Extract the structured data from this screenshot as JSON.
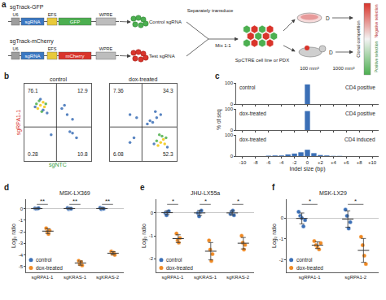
{
  "diagram": {
    "panel": "a",
    "constructs": [
      {
        "name": "sgTrack-GFP",
        "parts": [
          "U6",
          "sgRNA",
          "EFS",
          "GFP",
          "WPRE"
        ]
      },
      {
        "name": "sgTrack-mCherry",
        "parts": [
          "U6",
          "sgRNA",
          "EFS",
          "mCherry",
          "WPRE"
        ]
      }
    ],
    "groups": [
      "Control sgRNA",
      "Test sgRNA"
    ],
    "steps": [
      "Separately transduce",
      "Mix 1:1"
    ],
    "model": "SpCTRE cell line or PDX",
    "timepoints": [
      "D",
      "D"
    ],
    "sizes": [
      "100 mm³",
      "1000 mm³"
    ],
    "selection": [
      "Negative selection",
      "Clonal competition",
      "Positive selection"
    ]
  },
  "chart_data": [
    {
      "panel": "b",
      "type": "scatter",
      "title": "control",
      "x_label": "sgNTC",
      "y_label": "sgRPA1-1",
      "xlim": [
        0,
        5
      ],
      "ylim": [
        0,
        5
      ],
      "grid": false,
      "tick_labels": false,
      "gates": {
        "x": 2.4,
        "y": 2.2
      },
      "quadrants": {
        "upper_left": 76.1,
        "upper_right": 12.9,
        "lower_left": 0.28,
        "lower_right": 10.8
      },
      "x": [
        1.2,
        1.4,
        1.0,
        1.5,
        1.3,
        1.1,
        1.6,
        0.9,
        1.4,
        1.2,
        1.7,
        0.8,
        2.8,
        3.2,
        3.6,
        3.0,
        3.6,
        3.9,
        3.4,
        2.0
      ],
      "values": [
        3.6,
        3.8,
        3.4,
        3.5,
        3.2,
        3.9,
        3.7,
        3.7,
        3.3,
        4.0,
        3.1,
        3.5,
        3.4,
        3.0,
        2.7,
        3.6,
        1.8,
        1.5,
        1.9,
        1.7
      ],
      "colors": [
        "#f2c80f",
        "#f2c80f",
        "#f2c80f",
        "#f2c80f",
        "#4daf4a",
        "#4daf4a",
        "#4daf4a",
        "#4daf4a",
        "#3b6fb6",
        "#3b6fb6",
        "#3b6fb6",
        "#3b6fb6",
        "#3b6fb6",
        "#3b6fb6",
        "#3b6fb6",
        "#3b6fb6",
        "#3b6fb6",
        "#3b6fb6",
        "#3b6fb6",
        "#3b6fb6"
      ]
    },
    {
      "panel": "b",
      "type": "scatter",
      "title": "dox-treated",
      "xlim": [
        0,
        5
      ],
      "ylim": [
        0,
        5
      ],
      "grid": false,
      "tick_labels": false,
      "gates": {
        "x": 2.4,
        "y": 2.2
      },
      "quadrants": {
        "upper_left": 7.36,
        "upper_right": 34.3,
        "lower_left": 6.08,
        "lower_right": 52.3
      },
      "x": [
        3.8,
        4.0,
        3.6,
        4.1,
        3.9,
        3.5,
        4.2,
        3.7,
        3.3,
        4.3,
        3.2,
        3.5,
        3.0,
        3.8,
        2.8,
        3.4,
        1.5,
        2.0,
        1.8,
        1.5
      ],
      "values": [
        1.2,
        1.4,
        1.0,
        1.1,
        1.6,
        1.3,
        1.5,
        1.7,
        1.1,
        0.9,
        2.5,
        2.8,
        2.6,
        3.0,
        2.4,
        3.2,
        3.0,
        2.8,
        1.5,
        1.2
      ],
      "colors": [
        "#f2c80f",
        "#f2c80f",
        "#f2c80f",
        "#f2c80f",
        "#4daf4a",
        "#4daf4a",
        "#4daf4a",
        "#4daf4a",
        "#3b6fb6",
        "#3b6fb6",
        "#3b6fb6",
        "#3b6fb6",
        "#3b6fb6",
        "#3b6fb6",
        "#3b6fb6",
        "#3b6fb6",
        "#3b6fb6",
        "#3b6fb6",
        "#3b6fb6",
        "#3b6fb6"
      ]
    },
    {
      "panel": "c",
      "type": "bar",
      "title": "control",
      "annotation": "CD4 positive",
      "x": [
        0
      ],
      "values": [
        93
      ],
      "color": "#3b6fb6",
      "xlim": [
        -11,
        11
      ],
      "xticks": [
        -10,
        -8,
        -6,
        -4,
        -2,
        0,
        {
          "value": 2,
          "label": "+2"
        },
        {
          "value": 4,
          "label": "+4"
        },
        {
          "value": 6,
          "label": "+6"
        },
        {
          "value": 8,
          "label": "+8"
        },
        {
          "value": 10,
          "label": "+10"
        }
      ],
      "ylim": [
        0,
        100
      ],
      "yticks": [
        0,
        100
      ],
      "grid": false,
      "tick_labels": "y"
    },
    {
      "panel": "c",
      "type": "bar",
      "title": "dox-treated",
      "annotation": "CD4 positive",
      "y_label": "% of seq",
      "x": [
        0
      ],
      "values": [
        90
      ],
      "color": "#3b6fb6",
      "xlim": [
        -11,
        11
      ],
      "xticks": [
        -10,
        -8,
        -6,
        -4,
        -2,
        0,
        {
          "value": 2,
          "label": "+2"
        },
        {
          "value": 4,
          "label": "+4"
        },
        {
          "value": 6,
          "label": "+6"
        },
        {
          "value": 8,
          "label": "+8"
        },
        {
          "value": 10,
          "label": "+10"
        }
      ],
      "ylim": [
        0,
        100
      ],
      "yticks": [
        0,
        100
      ],
      "grid": false,
      "tick_labels": "y"
    },
    {
      "panel": "c",
      "type": "bar",
      "title": "dox-treated",
      "annotation": "CD4 induced",
      "x_label": "Indel size (bp)",
      "x": [
        -6,
        -5,
        -4,
        -3,
        -2,
        -1,
        0,
        1,
        2,
        3,
        4,
        5
      ],
      "values": [
        2,
        3,
        3,
        8,
        12,
        18,
        30,
        14,
        5,
        3,
        1,
        1
      ],
      "color": "#3b6fb6",
      "xlim": [
        -11,
        11
      ],
      "xticks": [
        -10,
        -8,
        -6,
        -4,
        -2,
        0,
        {
          "value": 2,
          "label": "+2"
        },
        {
          "value": 4,
          "label": "+4"
        },
        {
          "value": 6,
          "label": "+6"
        },
        {
          "value": 8,
          "label": "+8"
        },
        {
          "value": 10,
          "label": "+10"
        }
      ],
      "ylim": [
        0,
        100
      ],
      "yticks": [
        0,
        100
      ],
      "grid": false
    },
    {
      "panel": "d",
      "type": "strip",
      "title": "MSK-LX369",
      "y_label": "Log₂ ratio",
      "categories": [
        "sgRPA1-1",
        "sgKRAS-1",
        "sgKRAS-2"
      ],
      "ylim": [
        -5.5,
        0.8
      ],
      "yticks": [
        -5,
        -4,
        -3,
        -2,
        -1,
        0
      ],
      "grid": false,
      "legend": "lower left",
      "significance": [
        "**",
        "**",
        "**"
      ],
      "series": [
        {
          "name": "control",
          "color": "#3b6fb6",
          "marker": "circle",
          "values": [
            [
              0.02,
              -0.03,
              0.0,
              0.03
            ],
            [
              0.05,
              -0.05,
              0.0,
              -0.02
            ],
            [
              0.06,
              -0.06,
              0.02,
              -0.02
            ]
          ],
          "mean": [
            0.0,
            0.0,
            0.0
          ],
          "sd": [
            0.03,
            0.04,
            0.05
          ]
        },
        {
          "name": "dox-treated",
          "color": "#f08a24",
          "marker": "circle",
          "values": [
            [
              -1.7,
              -2.0,
              -2.2,
              -1.9
            ],
            [
              -4.5,
              -4.8,
              -4.6,
              -4.9
            ],
            [
              -3.7,
              -3.9,
              -3.8,
              -4.0
            ]
          ],
          "mean": [
            -1.95,
            -4.7,
            -3.85
          ],
          "sd": [
            0.21,
            0.18,
            0.13
          ]
        }
      ]
    },
    {
      "panel": "e",
      "type": "strip",
      "title": "JHU-LX55a",
      "y_label": "Log₂ ratio",
      "categories": [
        "sgRPA1-1",
        "sgKRAS-1",
        "sgKRAS-2"
      ],
      "ylim": [
        -2.6,
        0.6
      ],
      "yticks": [
        -2,
        -1,
        0
      ],
      "grid": false,
      "legend": "lower left",
      "significance": [
        "*",
        "*",
        "*"
      ],
      "series": [
        {
          "name": "control",
          "color": "#3b6fb6",
          "marker": "circle",
          "values": [
            [
              0.0,
              -0.1,
              0.05,
              0.08
            ],
            [
              0.0,
              -0.15,
              0.05,
              0.1
            ],
            [
              -0.05,
              0.05,
              0.1,
              -0.1
            ]
          ],
          "mean": [
            0.01,
            0.0,
            0.0
          ],
          "sd": [
            0.08,
            0.11,
            0.09
          ]
        },
        {
          "name": "dox-treated",
          "color": "#f08a24",
          "marker": "circle",
          "values": [
            [
              -0.9,
              -1.2,
              -1.3,
              -1.1
            ],
            [
              -1.2,
              -1.6,
              -2.1,
              -1.8
            ],
            [
              -1.0,
              -1.3,
              -1.6,
              -1.4
            ]
          ],
          "mean": [
            -1.125,
            -1.675,
            -1.325
          ],
          "sd": [
            0.17,
            0.38,
            0.25
          ]
        }
      ]
    },
    {
      "panel": "f",
      "type": "strip",
      "title": "MSK-LX29",
      "y_label": "Log₂ ratio",
      "categories": [
        "sgRPA1-1",
        "sgRPA1-2"
      ],
      "ylim": [
        -2.6,
        0.9
      ],
      "yticks": [
        -2,
        -1,
        0
      ],
      "grid": false,
      "legend": "lower left",
      "significance": [
        "*",
        "*"
      ],
      "series": [
        {
          "name": "control",
          "color": "#3b6fb6",
          "marker": "circle",
          "values": [
            [
              0.3,
              0.1,
              0.0,
              -0.4,
              -0.1
            ],
            [
              0.4,
              0.1,
              -0.5,
              -0.2
            ]
          ],
          "mean": [
            -0.02,
            -0.05
          ],
          "sd": [
            0.26,
            0.39
          ]
        },
        {
          "name": "dox-treated",
          "color": "#f08a24",
          "marker": "circle",
          "values": [
            [
              -1.1,
              -1.3,
              -1.4,
              -1.5,
              -1.2
            ],
            [
              -0.9,
              -1.3,
              -1.8,
              -2.2
            ]
          ],
          "mean": [
            -1.3,
            -1.55
          ],
          "sd": [
            0.16,
            0.57
          ]
        }
      ]
    }
  ]
}
